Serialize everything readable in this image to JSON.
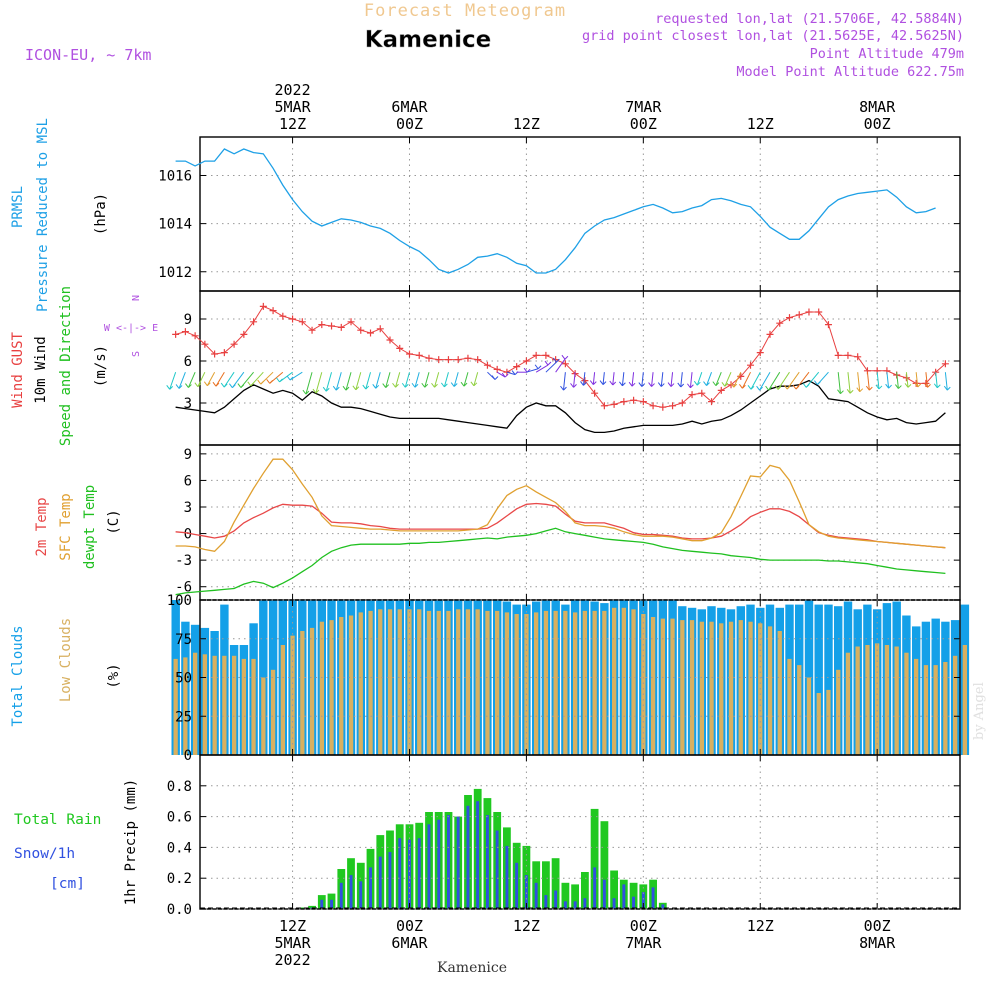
{
  "header": {
    "app_title": "Forecast Meteogram",
    "location": "Kamenice",
    "model": "ICON-EU, ~ 7km",
    "requested": "requested lon,lat (21.5706E, 42.5884N)",
    "grid_point": "grid point closest lon,lat (21.5625E, 42.5625N)",
    "point_altitude": "Point Altitude 479m",
    "model_altitude": "Model Point Altitude 622.75m",
    "footer_location": "Kamenice",
    "watermark": "by Angel"
  },
  "time_axis": {
    "hours": 66,
    "top_labels": [
      {
        "h": 12,
        "lines": [
          "2022",
          "5MAR",
          "12Z"
        ]
      },
      {
        "h": 24,
        "lines": [
          "6MAR",
          "00Z"
        ]
      },
      {
        "h": 36,
        "lines": [
          "12Z"
        ]
      },
      {
        "h": 48,
        "lines": [
          "7MAR",
          "00Z"
        ]
      },
      {
        "h": 60,
        "lines": [
          "12Z"
        ]
      },
      {
        "h": 72,
        "lines": [
          "8MAR",
          "00Z"
        ]
      }
    ],
    "bottom_labels": [
      {
        "h": 12,
        "lines": [
          "12Z",
          "5MAR",
          "2022"
        ]
      },
      {
        "h": 24,
        "lines": [
          "00Z",
          "6MAR"
        ]
      },
      {
        "h": 36,
        "lines": [
          "12Z"
        ]
      },
      {
        "h": 48,
        "lines": [
          "00Z",
          "7MAR"
        ]
      },
      {
        "h": 60,
        "lines": [
          "12Z"
        ]
      },
      {
        "h": 72,
        "lines": [
          "00Z",
          "8MAR"
        ]
      }
    ]
  },
  "colors": {
    "pressure": "#1ea0e6",
    "gust": "#e84040",
    "wind": "#000000",
    "temp2m": "#e84848",
    "sfc": "#e0a030",
    "dewpt": "#20c020",
    "total_clouds": "#14a0e8",
    "low_clouds": "#d8b060",
    "rain": "#20c820",
    "snow": "#3050e0",
    "purple": "#b050e0",
    "title_orange": "#f0c890"
  },
  "chart_data": [
    {
      "id": "pressure",
      "type": "line",
      "title": "PRMSL Pressure Reduced to MSL",
      "label_lines": [
        "PRMSL",
        "Pressure Reduced to MSL"
      ],
      "ylabel": "(hPa)",
      "ylim": [
        1011.2,
        1017.6
      ],
      "yticks": [
        1012,
        1014,
        1016
      ],
      "start_h": 0,
      "values": [
        1016.6,
        1016.6,
        1016.4,
        1016.6,
        1016.6,
        1017.1,
        1016.9,
        1017.1,
        1016.95,
        1016.9,
        1016.3,
        1015.6,
        1015.0,
        1014.5,
        1014.1,
        1013.9,
        1014.05,
        1014.2,
        1014.15,
        1014.05,
        1013.9,
        1013.8,
        1013.6,
        1013.3,
        1013.05,
        1012.85,
        1012.5,
        1012.1,
        1011.95,
        1012.1,
        1012.3,
        1012.6,
        1012.65,
        1012.75,
        1012.6,
        1012.35,
        1012.25,
        1011.95,
        1011.95,
        1012.1,
        1012.5,
        1013.0,
        1013.6,
        1013.9,
        1014.15,
        1014.25,
        1014.4,
        1014.55,
        1014.7,
        1014.8,
        1014.65,
        1014.45,
        1014.5,
        1014.65,
        1014.75,
        1015.0,
        1015.05,
        1014.95,
        1014.8,
        1014.7,
        1014.3,
        1013.85,
        1013.6,
        1013.35,
        1013.35,
        1013.7,
        1014.2,
        1014.7,
        1015.0,
        1015.15,
        1015.25,
        1015.3,
        1015.35,
        1015.4,
        1015.1,
        1014.7,
        1014.45,
        1014.5,
        1014.65
      ]
    },
    {
      "id": "wind",
      "type": "line",
      "label_lines": [
        "Wind GUST",
        "10m Wind",
        "Speed and Direction"
      ],
      "ylabel": "(m/s)",
      "compass": [
        "N",
        "W <-|-> E",
        "S"
      ],
      "ylim": [
        0.0,
        11.0
      ],
      "yticks": [
        3,
        6,
        9
      ],
      "series": [
        {
          "name": "Wind GUST",
          "start_h": 0,
          "values": [
            7.9,
            8.1,
            7.8,
            7.2,
            6.5,
            6.6,
            7.2,
            7.9,
            8.8,
            9.9,
            9.6,
            9.2,
            9.0,
            8.8,
            8.2,
            8.6,
            8.5,
            8.4,
            8.8,
            8.2,
            8.0,
            8.3,
            7.5,
            6.9,
            6.5,
            6.4,
            6.2,
            6.1,
            6.1,
            6.1,
            6.2,
            6.1,
            5.7,
            5.4,
            5.2,
            5.6,
            6.0,
            6.4,
            6.4,
            6.1,
            5.8,
            5.1,
            4.6,
            3.7,
            2.8,
            2.9,
            3.1,
            3.2,
            3.1,
            2.8,
            2.7,
            2.8,
            3.0,
            3.6,
            3.7,
            3.1,
            3.9,
            4.3,
            4.9,
            5.7,
            6.6,
            7.9,
            8.7,
            9.1,
            9.3,
            9.5,
            9.5,
            8.6,
            6.4,
            6.4,
            6.3,
            5.3,
            5.3,
            5.3,
            5.0,
            4.8,
            4.4,
            4.4,
            5.2,
            5.8
          ]
        },
        {
          "name": "10m Wind",
          "start_h": 0,
          "values": [
            2.7,
            2.6,
            2.5,
            2.4,
            2.3,
            2.7,
            3.3,
            3.9,
            4.3,
            4.0,
            3.7,
            3.9,
            3.7,
            3.2,
            3.8,
            3.5,
            3.0,
            2.7,
            2.7,
            2.6,
            2.4,
            2.2,
            2.0,
            1.9,
            1.9,
            1.9,
            1.9,
            1.9,
            1.8,
            1.7,
            1.6,
            1.5,
            1.4,
            1.3,
            1.2,
            2.1,
            2.7,
            3.0,
            2.8,
            2.8,
            2.3,
            1.6,
            1.1,
            0.9,
            0.9,
            1.0,
            1.2,
            1.3,
            1.4,
            1.4,
            1.4,
            1.4,
            1.5,
            1.7,
            1.5,
            1.7,
            1.8,
            2.1,
            2.5,
            3.0,
            3.5,
            4.0,
            4.2,
            4.2,
            4.3,
            4.6,
            4.2,
            3.3,
            3.2,
            3.1,
            2.7,
            2.3,
            2.0,
            1.8,
            1.9,
            1.6,
            1.5,
            1.6,
            1.7,
            2.3
          ]
        }
      ],
      "arrow_dir_start": [
        150,
        190,
        220,
        210,
        200,
        160,
        140,
        120,
        100,
        80,
        70,
        60,
        50
      ]
    },
    {
      "id": "temperature",
      "type": "line",
      "label_lines": [
        "2m Temp",
        "SFC Temp",
        "dewpt Temp"
      ],
      "ylabel": "(C)",
      "ylim": [
        -7.5,
        10.0
      ],
      "yticks": [
        -6,
        -3,
        0,
        3,
        6,
        9
      ],
      "series": [
        {
          "name": "2m Temp",
          "start_h": 0,
          "values": [
            0.2,
            0.1,
            -0.1,
            -0.3,
            -0.5,
            -0.3,
            0.3,
            1.2,
            1.8,
            2.3,
            2.9,
            3.3,
            3.2,
            3.2,
            3.1,
            2.3,
            1.3,
            1.2,
            1.2,
            1.1,
            0.9,
            0.8,
            0.6,
            0.5,
            0.5,
            0.5,
            0.5,
            0.5,
            0.5,
            0.5,
            0.5,
            0.5,
            0.6,
            1.2,
            2.0,
            2.8,
            3.3,
            3.4,
            3.3,
            3.1,
            2.2,
            1.4,
            1.2,
            1.2,
            1.2,
            0.9,
            0.6,
            0.1,
            -0.1,
            -0.1,
            -0.2,
            -0.3,
            -0.5,
            -0.6,
            -0.6,
            -0.5,
            -0.3,
            0.3,
            1.0,
            1.9,
            2.4,
            2.8,
            2.8,
            2.5,
            1.9,
            1.0,
            0.1,
            -0.2,
            -0.4,
            -0.5,
            -0.6,
            -0.7,
            -0.9,
            -1.0,
            -1.1,
            -1.2,
            -1.3,
            -1.4,
            -1.5,
            -1.6
          ]
        },
        {
          "name": "SFC Temp",
          "start_h": 0,
          "values": [
            -1.4,
            -1.4,
            -1.5,
            -1.8,
            -2.0,
            -0.9,
            1.3,
            3.2,
            5.1,
            6.8,
            8.4,
            8.4,
            7.2,
            5.6,
            4.1,
            2.0,
            0.9,
            0.8,
            0.7,
            0.6,
            0.5,
            0.5,
            0.4,
            0.3,
            0.3,
            0.3,
            0.3,
            0.3,
            0.3,
            0.3,
            0.4,
            0.5,
            1.0,
            2.8,
            4.3,
            5.0,
            5.4,
            4.7,
            4.1,
            3.5,
            2.5,
            1.2,
            0.9,
            0.9,
            0.8,
            0.6,
            0.2,
            -0.1,
            -0.3,
            -0.3,
            -0.3,
            -0.4,
            -0.6,
            -0.8,
            -0.8,
            -0.5,
            0.1,
            1.9,
            4.2,
            6.5,
            6.4,
            7.7,
            7.4,
            6.0,
            3.6,
            1.0,
            0.2,
            -0.3,
            -0.5,
            -0.6,
            -0.7,
            -0.8,
            -0.9,
            -1.0,
            -1.1,
            -1.2,
            -1.3,
            -1.4,
            -1.5,
            -1.6
          ]
        },
        {
          "name": "dewpt Temp",
          "start_h": 0,
          "values": [
            -6.9,
            -6.7,
            -6.6,
            -6.5,
            -6.4,
            -6.3,
            -6.2,
            -5.7,
            -5.4,
            -5.6,
            -6.1,
            -5.6,
            -5.0,
            -4.3,
            -3.6,
            -2.7,
            -2.0,
            -1.6,
            -1.3,
            -1.2,
            -1.2,
            -1.2,
            -1.2,
            -1.2,
            -1.1,
            -1.1,
            -1.0,
            -1.0,
            -0.9,
            -0.8,
            -0.7,
            -0.6,
            -0.5,
            -0.6,
            -0.4,
            -0.3,
            -0.2,
            0.0,
            0.3,
            0.6,
            0.2,
            0.0,
            -0.2,
            -0.4,
            -0.6,
            -0.7,
            -0.8,
            -0.9,
            -1.0,
            -1.2,
            -1.5,
            -1.7,
            -1.9,
            -2.0,
            -2.1,
            -2.2,
            -2.3,
            -2.5,
            -2.6,
            -2.7,
            -2.9,
            -3.0,
            -3.0,
            -3.0,
            -3.0,
            -3.0,
            -3.0,
            -3.1,
            -3.1,
            -3.2,
            -3.3,
            -3.4,
            -3.6,
            -3.8,
            -4.0,
            -4.1,
            -4.2,
            -4.3,
            -4.4,
            -4.5
          ]
        }
      ]
    },
    {
      "id": "clouds",
      "type": "bar",
      "label_lines": [
        "Total Clouds",
        "Low Clouds"
      ],
      "ylabel": "(%)",
      "ylim": [
        0,
        100
      ],
      "yticks": [
        0,
        25,
        50,
        75,
        100
      ],
      "series": [
        {
          "name": "Total Clouds",
          "start_h": 0,
          "values": [
            100,
            86,
            84,
            82,
            80,
            97,
            71,
            71,
            85,
            100,
            100,
            100,
            100,
            100,
            100,
            100,
            100,
            100,
            100,
            100,
            100,
            100,
            100,
            100,
            100,
            100,
            100,
            100,
            100,
            100,
            100,
            100,
            100,
            100,
            99,
            97,
            97,
            99,
            100,
            100,
            97,
            100,
            100,
            99,
            98,
            100,
            100,
            100,
            100,
            100,
            100,
            100,
            96,
            95,
            94,
            96,
            95,
            94,
            96,
            97,
            95,
            97,
            95,
            97,
            97,
            100,
            97,
            97,
            96,
            99,
            94,
            97,
            94,
            98,
            99,
            90,
            83,
            86,
            88,
            86,
            87,
            97
          ]
        },
        {
          "name": "Low Clouds",
          "start_h": 0,
          "values": [
            62,
            63,
            66,
            65,
            64,
            64,
            64,
            62,
            62,
            50,
            55,
            71,
            77,
            80,
            82,
            86,
            87,
            89,
            90,
            92,
            93,
            94,
            94,
            94,
            94,
            94,
            93,
            93,
            93,
            94,
            94,
            94,
            93,
            93,
            92,
            91,
            91,
            92,
            93,
            93,
            93,
            92,
            93,
            93,
            93,
            95,
            95,
            94,
            91,
            89,
            88,
            88,
            87,
            87,
            86,
            86,
            85,
            86,
            87,
            86,
            85,
            83,
            80,
            62,
            58,
            50,
            40,
            42,
            55,
            66,
            70,
            71,
            72,
            71,
            70,
            66,
            62,
            58,
            58,
            60,
            64,
            71
          ]
        }
      ]
    },
    {
      "id": "precip",
      "type": "bar",
      "label_lines": [
        "Total Rain",
        "Snow/1h",
        "[cm]"
      ],
      "ylabel": "1hr Precip (mm)",
      "ylim": [
        0,
        1.0
      ],
      "yticks": [
        0,
        0.2,
        0.4,
        0.6,
        0.8
      ],
      "series": [
        {
          "name": "Total Rain",
          "start_h": 0,
          "values": [
            0,
            0,
            0,
            0,
            0,
            0,
            0,
            0,
            0,
            0,
            0,
            0,
            0,
            0.01,
            0.02,
            0.09,
            0.1,
            0.26,
            0.33,
            0.3,
            0.39,
            0.48,
            0.51,
            0.55,
            0.55,
            0.56,
            0.63,
            0.63,
            0.63,
            0.6,
            0.74,
            0.78,
            0.72,
            0.63,
            0.53,
            0.43,
            0.41,
            0.31,
            0.31,
            0.33,
            0.17,
            0.16,
            0.24,
            0.65,
            0.57,
            0.25,
            0.19,
            0.17,
            0.16,
            0.19,
            0.04,
            0.0,
            0,
            0,
            0,
            0,
            0,
            0,
            0,
            0,
            0,
            0,
            0,
            0,
            0,
            0,
            0,
            0,
            0,
            0,
            0,
            0,
            0,
            0,
            0,
            0,
            0,
            0,
            0,
            0
          ]
        },
        {
          "name": "Snow/1h",
          "start_h": 0,
          "values": [
            0,
            0,
            0,
            0,
            0,
            0,
            0,
            0,
            0,
            0,
            0,
            0,
            0,
            0,
            0.01,
            0.06,
            0.06,
            0.17,
            0.22,
            0.18,
            0.27,
            0.34,
            0.37,
            0.46,
            0.45,
            0.46,
            0.55,
            0.58,
            0.61,
            0.6,
            0.67,
            0.7,
            0.61,
            0.51,
            0.41,
            0.3,
            0.22,
            0.17,
            0.09,
            0.12,
            0.05,
            0.05,
            0.07,
            0.27,
            0.19,
            0.07,
            0.16,
            0.08,
            0.11,
            0.14,
            0.03,
            0.0,
            0,
            0,
            0,
            0,
            0,
            0,
            0,
            0,
            0,
            0,
            0,
            0,
            0,
            0,
            0,
            0,
            0,
            0,
            0,
            0,
            0,
            0,
            0,
            0,
            0,
            0,
            0,
            0
          ]
        }
      ]
    }
  ]
}
